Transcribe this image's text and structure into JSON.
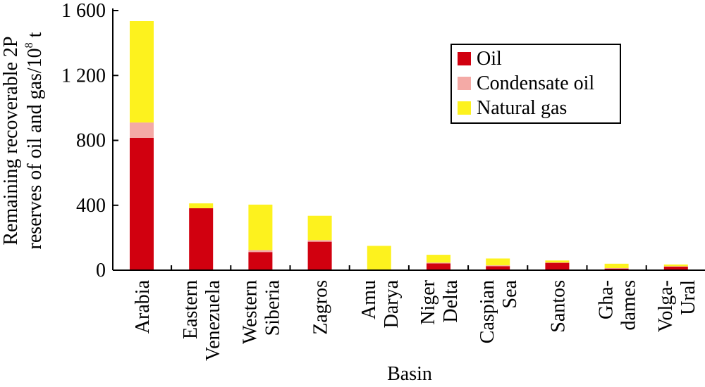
{
  "chart_data": {
    "type": "bar",
    "stacked": true,
    "xlabel": "Basin",
    "ylabel_line1": "Remaining recoverable 2P",
    "ylabel_line2_prefix": "reserves of oil and gas/10",
    "ylabel_line2_exp": "8",
    "ylabel_line2_suffix": " t",
    "ylim": [
      0,
      1600
    ],
    "yticks": [
      0,
      400,
      800,
      1200,
      1600
    ],
    "ytick_labels": [
      "0",
      "400",
      "800",
      "1 200",
      "1 600"
    ],
    "categories": [
      [
        "Arabia"
      ],
      [
        "Eastern",
        "Venezuela"
      ],
      [
        "Western",
        "Siberia"
      ],
      [
        "Zagros"
      ],
      [
        "Amu",
        "Darya"
      ],
      [
        "Niger",
        "Delta"
      ],
      [
        "Caspian",
        "Sea"
      ],
      [
        "Santos"
      ],
      [
        "Gha-",
        "dames"
      ],
      [
        "Volga-",
        "Ural"
      ]
    ],
    "series": [
      {
        "name": "Oil",
        "color": "#d1000f",
        "values": [
          815,
          382,
          112,
          175,
          0,
          42,
          25,
          45,
          10,
          22
        ]
      },
      {
        "name": "Condensate oil",
        "color": "#f4aaa6",
        "values": [
          95,
          0,
          12,
          10,
          3,
          5,
          5,
          3,
          3,
          2
        ]
      },
      {
        "name": "Natural gas",
        "color": "#fdf21e",
        "values": [
          625,
          30,
          280,
          150,
          147,
          48,
          42,
          12,
          27,
          11
        ]
      }
    ],
    "legend_position": "top-right",
    "grid": false
  }
}
